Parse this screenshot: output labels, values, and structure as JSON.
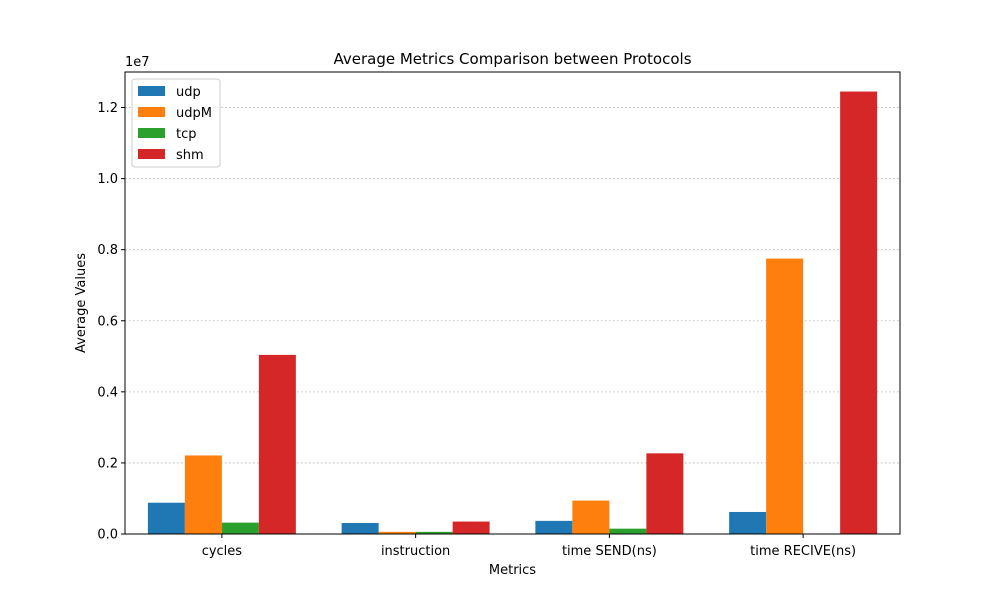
{
  "chart_data": {
    "type": "bar",
    "title": "Average Metrics Comparison between Protocols",
    "xlabel": "Metrics",
    "ylabel": "Average Values",
    "y_scale_note": "1e7",
    "y_multiplier": 10000000,
    "ylim": [
      0,
      1.3
    ],
    "yticks": [
      0.0,
      0.2,
      0.4,
      0.6,
      0.8,
      1.0,
      1.2
    ],
    "ytick_labels": [
      "0.0",
      "0.2",
      "0.4",
      "0.6",
      "0.8",
      "1.0",
      "1.2"
    ],
    "categories": [
      "cycles",
      "instruction",
      "time SEND(ns)",
      "time RECIVE(ns)"
    ],
    "series": [
      {
        "name": "udp",
        "color": "#1f77b4",
        "values": [
          0.088,
          0.031,
          0.037,
          0.062
        ]
      },
      {
        "name": "udpM",
        "color": "#ff7f0e",
        "values": [
          0.221,
          0.006,
          0.094,
          0.775
        ]
      },
      {
        "name": "tcp",
        "color": "#2ca02c",
        "values": [
          0.032,
          0.006,
          0.015,
          0.0
        ]
      },
      {
        "name": "shm",
        "color": "#d62728",
        "values": [
          0.504,
          0.035,
          0.227,
          1.245
        ]
      }
    ],
    "grid": "y-dotted",
    "legend_position": "top-left"
  }
}
